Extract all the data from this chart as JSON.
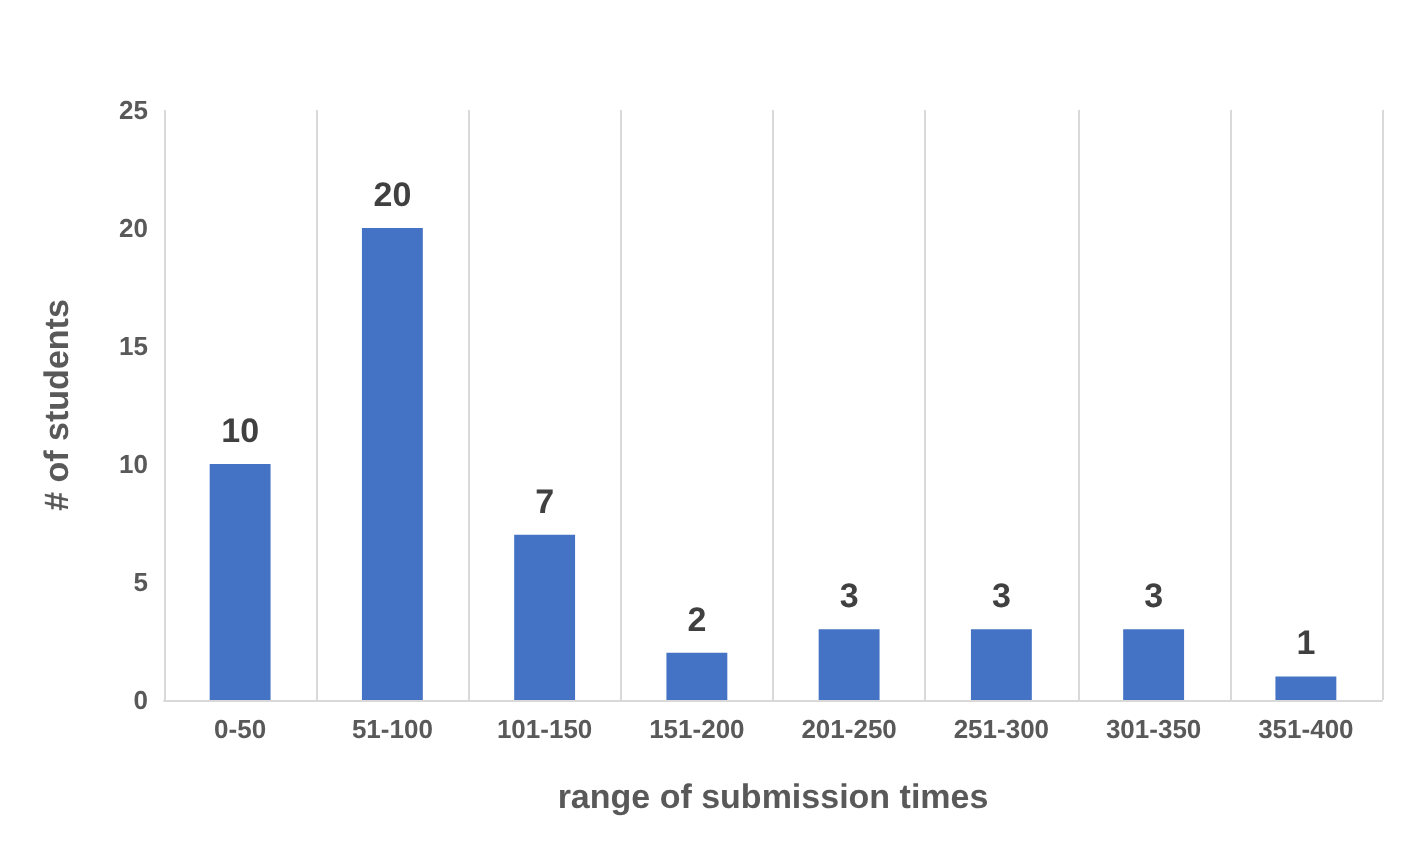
{
  "chart_data": {
    "type": "bar",
    "xlabel": "range of submission times",
    "ylabel": "# of students",
    "categories": [
      "0-50",
      "51-100",
      "101-150",
      "151-200",
      "201-250",
      "251-300",
      "301-350",
      "351-400"
    ],
    "values": [
      10,
      20,
      7,
      2,
      3,
      3,
      3,
      1
    ],
    "color": "#4472c4",
    "ylim": [
      0,
      25
    ],
    "yticks": [
      0,
      5,
      10,
      15,
      20,
      25
    ],
    "grid": "x",
    "data_labels": true
  }
}
